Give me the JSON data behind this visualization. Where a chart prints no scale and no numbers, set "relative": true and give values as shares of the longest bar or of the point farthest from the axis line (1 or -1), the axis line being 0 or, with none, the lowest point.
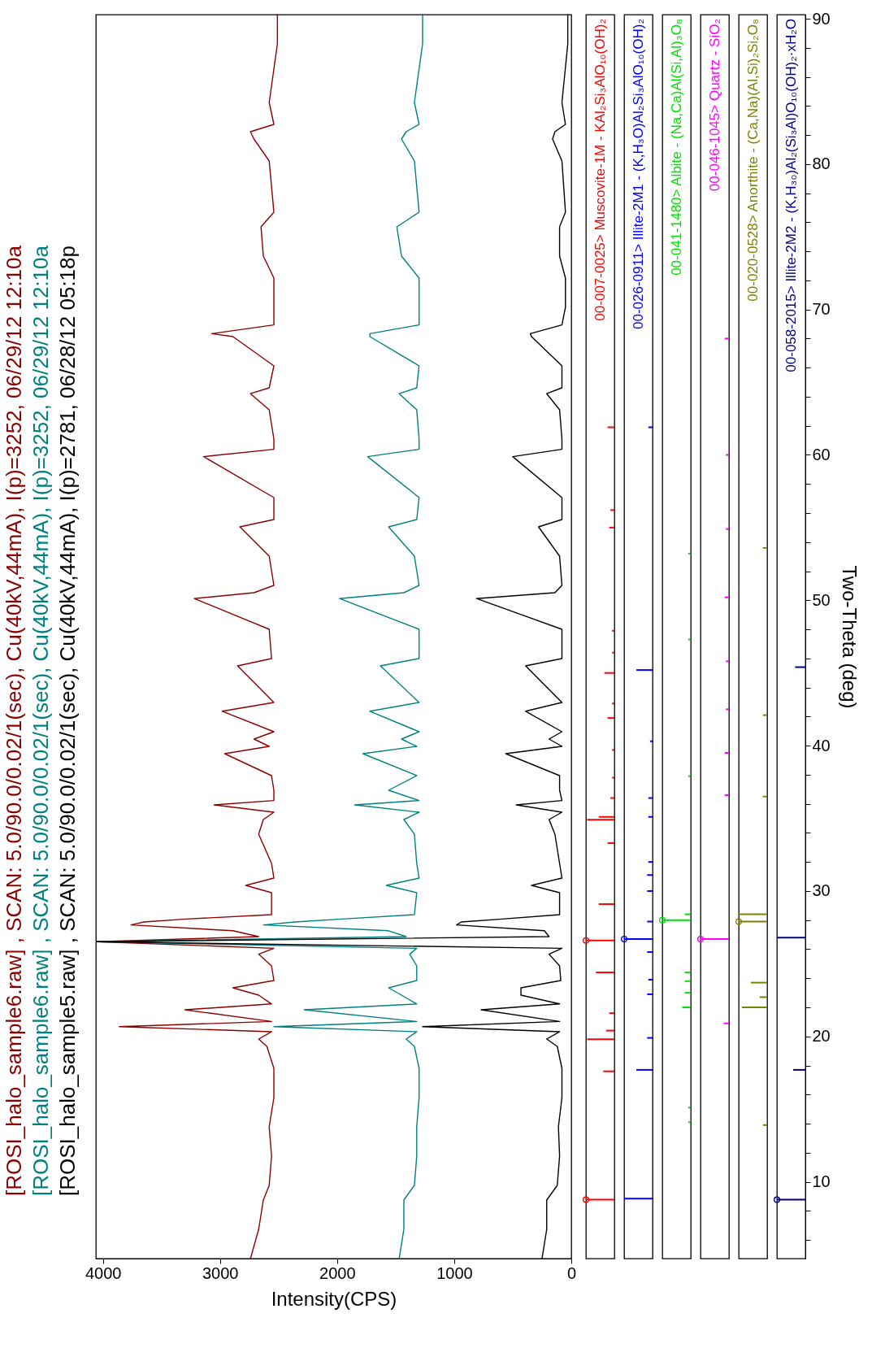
{
  "chart_data": [
    {
      "type": "line",
      "xlabel": "Intensity(CPS)",
      "xlim": [
        4060,
        0
      ],
      "xticks": [
        0,
        1000,
        2000,
        3000,
        4000
      ],
      "ylim": [
        5,
        90
      ],
      "tick_labels": "x",
      "legend": "left",
      "line_style": "solid",
      "series": [
        {
          "name": "[ROSI_halo_sample6.raw] , SCAN: 5.0/90.0/0.02/1(sec), Cu(40kV,44mA), I(p)=3252, 06/29/12 12:10a",
          "color": "#8b0000",
          "x": [
            2740,
            2670,
            2630,
            2580,
            2560,
            2580,
            2540,
            2540,
            2600,
            2670,
            2560,
            3860,
            2560,
            3300,
            2560,
            2670,
            2890,
            2540,
            2560,
            2670,
            2540,
            4050,
            2670,
            2890,
            3760,
            3650,
            3290,
            2560,
            2560,
            2780,
            2540,
            2560,
            2670,
            2630,
            2540,
            3050,
            2540,
            2540,
            2560,
            2960,
            2580,
            2710,
            2540,
            2980,
            2540,
            2850,
            2560,
            2580,
            3220,
            2710,
            2540,
            2580,
            2830,
            2540,
            2540,
            3140,
            2540,
            2540,
            2580,
            2740,
            2580,
            2540,
            2890,
            3070,
            2540,
            2540,
            2540,
            2630,
            2650,
            2540,
            2580,
            2710,
            2740,
            2540,
            2580,
            2510,
            2510
          ],
          "values": [
            5,
            7,
            9,
            10,
            12,
            14,
            16,
            18,
            19.5,
            20,
            20.5,
            20.85,
            21.2,
            22,
            22.4,
            23,
            23.5,
            24,
            25,
            25.8,
            26.2,
            26.65,
            27,
            27.4,
            27.8,
            28,
            28.2,
            28.5,
            30,
            30.5,
            31,
            32,
            34,
            35,
            35.5,
            36,
            36.3,
            37,
            38,
            39.5,
            40,
            40.5,
            41,
            42.4,
            43,
            45.5,
            46,
            48,
            50.1,
            50.5,
            51,
            53,
            55,
            55.5,
            57,
            59.8,
            60.3,
            61,
            63,
            64.1,
            64.5,
            66,
            68,
            68.2,
            68.8,
            70,
            72,
            73.5,
            75.5,
            76.5,
            80,
            81.5,
            82,
            82.5,
            84,
            88,
            90
          ]
        },
        {
          "name": "[ROSI_halo_sample6.raw] , SCAN: 5.0/90.0/0.02/1(sec), Cu(40kV,44mA), I(p)=3252, 06/29/12 12:10a",
          "color": "#008080",
          "x": [
            1470,
            1430,
            1430,
            1340,
            1320,
            1320,
            1300,
            1300,
            1340,
            1410,
            1320,
            2540,
            1320,
            2280,
            1320,
            1450,
            1560,
            1320,
            1320,
            1380,
            1320,
            4050,
            1410,
            1560,
            2630,
            2360,
            1960,
            1340,
            1320,
            1580,
            1300,
            1320,
            1340,
            1430,
            1300,
            1850,
            1300,
            1560,
            1320,
            1780,
            1320,
            1450,
            1300,
            1720,
            1300,
            1630,
            1300,
            1300,
            1980,
            1430,
            1300,
            1340,
            1560,
            1320,
            1300,
            1740,
            1300,
            1300,
            1320,
            1470,
            1320,
            1300,
            1720,
            1720,
            1300,
            1300,
            1300,
            1450,
            1490,
            1300,
            1340,
            1450,
            1410,
            1300,
            1340,
            1270,
            1270
          ],
          "values": [
            5,
            7,
            9,
            10,
            12,
            14,
            16,
            18,
            19.5,
            20,
            20.5,
            20.85,
            21.2,
            22,
            22.4,
            23,
            23.5,
            24,
            25,
            25.8,
            26.2,
            26.65,
            27,
            27.4,
            27.8,
            28,
            28.2,
            28.5,
            30,
            30.5,
            31,
            32,
            34,
            35,
            35.5,
            36,
            36.3,
            37,
            38,
            39.5,
            40,
            40.5,
            41,
            42.4,
            43,
            45.5,
            46,
            48,
            50.1,
            50.5,
            51,
            53,
            55,
            55.5,
            57,
            59.8,
            60.3,
            61,
            63,
            64.1,
            64.5,
            66,
            68,
            68.2,
            68.8,
            70,
            72,
            73.5,
            75.5,
            76.5,
            80,
            81.5,
            82,
            82.5,
            84,
            88,
            90
          ]
        },
        {
          "name": "[ROSI_halo_sample5.raw] , SCAN: 5.0/90.0/0.02/1(sec), Cu(40kV,44mA), I(p)=2781, 06/28/12 05:18p",
          "color": "#000000",
          "x": [
            250,
            210,
            210,
            120,
            100,
            110,
            80,
            80,
            120,
            210,
            100,
            1270,
            100,
            770,
            100,
            430,
            430,
            90,
            100,
            190,
            80,
            4050,
            190,
            230,
            980,
            940,
            590,
            100,
            100,
            340,
            80,
            100,
            140,
            190,
            80,
            470,
            80,
            100,
            100,
            560,
            80,
            190,
            80,
            390,
            80,
            390,
            80,
            80,
            810,
            140,
            80,
            100,
            280,
            80,
            80,
            500,
            80,
            80,
            100,
            210,
            80,
            80,
            340,
            350,
            80,
            50,
            50,
            100,
            100,
            50,
            80,
            160,
            140,
            50,
            80,
            30,
            30
          ],
          "values": [
            5,
            7,
            9,
            10,
            12,
            14,
            16,
            18,
            19.5,
            20,
            20.5,
            20.85,
            21.2,
            22,
            22.4,
            23,
            23.5,
            24,
            25,
            25.8,
            26.2,
            26.65,
            27,
            27.4,
            27.8,
            28,
            28.2,
            28.5,
            30,
            30.5,
            31,
            32,
            34,
            35,
            35.5,
            36,
            36.3,
            37,
            38,
            39.5,
            40,
            40.5,
            41,
            42.4,
            43,
            45.5,
            46,
            48,
            50.1,
            50.5,
            51,
            53,
            55,
            55.5,
            57,
            59.8,
            60.3,
            61,
            63,
            64.1,
            64.5,
            66,
            68,
            68.2,
            68.8,
            70,
            72,
            73.5,
            75.5,
            76.5,
            80,
            81.5,
            82,
            82.5,
            84,
            88,
            90
          ]
        }
      ]
    },
    {
      "type": "bar",
      "orientation": "horizontal",
      "title": "00-007-0025> Muscovite-1M - KAl₂Si₃AlO₁₀(OH)₂",
      "relative": true,
      "ylim": [
        5,
        90
      ],
      "tick_labels": false,
      "series": [
        {
          "color": "#ff0000",
          "x": [
            8.77,
            17.6,
            19.8,
            20.4,
            21.6,
            24.4,
            26.6,
            29.1,
            33.3,
            34.9,
            35.1,
            36.4,
            37.8,
            39.7,
            41.9,
            42.9,
            45,
            46.4,
            47.9,
            55,
            56.2,
            61.9
          ],
          "values": [
            1,
            0.39,
            0.96,
            0.29,
            0.18,
            0.65,
            1,
            0.55,
            0.24,
            0.96,
            0.55,
            0.14,
            0.08,
            0.08,
            0.24,
            0.08,
            0.35,
            0.08,
            0.08,
            0.18,
            0.14,
            0.24
          ]
        },
        {
          "type": "scatter",
          "marker": "circle",
          "color": "#ff0000",
          "x": [
            8.77,
            26.6
          ],
          "values": [
            1,
            1
          ]
        }
      ]
    },
    {
      "type": "bar",
      "orientation": "horizontal",
      "title": "00-026-0911> Illite-2M1 - (K,H₃O)Al₂Si₃AlO₁₀(OH)₂",
      "relative": true,
      "ylim": [
        5,
        90
      ],
      "tick_labels": false,
      "series": [
        {
          "color": "#0000ff",
          "x": [
            8.84,
            17.7,
            19.9,
            22.9,
            23.9,
            25.8,
            26.7,
            27.9,
            30,
            31.1,
            32,
            35.1,
            36.4,
            40.3,
            45.2,
            61.9
          ],
          "values": [
            1,
            0.57,
            0.19,
            0.19,
            0.15,
            0.19,
            1,
            0.19,
            0.19,
            0.19,
            0.15,
            0.15,
            0.15,
            0.09,
            0.57,
            0.15
          ]
        },
        {
          "type": "scatter",
          "marker": "circle",
          "color": "#0000ff",
          "x": [
            26.7
          ],
          "values": [
            1
          ]
        }
      ]
    },
    {
      "type": "bar",
      "orientation": "horizontal",
      "title": "00-041-1480> Albite - (Na,Ca)Al(Si,Al)₃O₈",
      "relative": true,
      "ylim": [
        5,
        90
      ],
      "tick_labels": false,
      "series": [
        {
          "color": "#00e000",
          "x": [
            14.1,
            15.1,
            22,
            23,
            23.8,
            24.4,
            27.9,
            28,
            28.4,
            37.9,
            47.3,
            53.2
          ],
          "values": [
            0.09,
            0.09,
            0.3,
            0.21,
            0.21,
            0.21,
            null,
            1,
            0.21,
            0.09,
            0.09,
            0.09
          ]
        },
        {
          "type": "scatter",
          "marker": "circle",
          "color": "#00e000",
          "x": [
            28
          ],
          "values": [
            1
          ]
        }
      ]
    },
    {
      "type": "bar",
      "orientation": "horizontal",
      "title": "00-046-1045> Quartz - SiO₂",
      "relative": true,
      "ylim": [
        5,
        90
      ],
      "tick_labels": false,
      "series": [
        {
          "color": "#ff00ff",
          "x": [
            20.9,
            26.7,
            36.6,
            39.5,
            42.5,
            45.8,
            50.2,
            54.9,
            60,
            68
          ],
          "values": [
            0.19,
            1,
            0.15,
            0.15,
            0.11,
            0.11,
            0.15,
            0.11,
            0.11,
            0.15
          ]
        },
        {
          "type": "scatter",
          "marker": "circle",
          "color": "#ff00ff",
          "x": [
            26.7
          ],
          "values": [
            1
          ]
        }
      ]
    },
    {
      "type": "bar",
      "orientation": "horizontal",
      "title": "00-020-0528> Anorthite - (Ca,Na)(Al,Si)₂Si₂O₈",
      "relative": true,
      "ylim": [
        5,
        90
      ],
      "tick_labels": false,
      "series": [
        {
          "color": "#808000",
          "x": [
            13.9,
            22,
            22.7,
            23.7,
            27.9,
            28.4,
            36.5,
            42.1,
            53.6
          ],
          "values": [
            0.15,
            0.89,
            0.26,
            0.57,
            1,
            1,
            0.15,
            0.15,
            0.15
          ]
        },
        {
          "type": "scatter",
          "marker": "circle",
          "color": "#808000",
          "x": [
            27.9
          ],
          "values": [
            1
          ]
        }
      ]
    },
    {
      "type": "bar",
      "orientation": "horizontal",
      "title": "00-058-2015> Illite-2M2 - (K,H₃₀)Al₂(Si₃Al)O₁₀(OH)₂·xH₂O",
      "relative": true,
      "ylim": [
        5,
        90
      ],
      "ylabel": "Two-Theta (deg)",
      "tick_labels": "y",
      "yticks": [
        {
          "value": 6,
          "label": null
        },
        {
          "value": 8,
          "label": null
        },
        10,
        {
          "value": 12,
          "label": null
        },
        {
          "value": 14,
          "label": null
        },
        {
          "value": 16,
          "label": null
        },
        {
          "value": 18,
          "label": null
        },
        20,
        {
          "value": 22,
          "label": null
        },
        {
          "value": 24,
          "label": null
        },
        {
          "value": 26,
          "label": null
        },
        {
          "value": 28,
          "label": null
        },
        30,
        {
          "value": 32,
          "label": null
        },
        {
          "value": 34,
          "label": null
        },
        {
          "value": 36,
          "label": null
        },
        {
          "value": 38,
          "label": null
        },
        40,
        {
          "value": 42,
          "label": null
        },
        {
          "value": 44,
          "label": null
        },
        {
          "value": 46,
          "label": null
        },
        {
          "value": 48,
          "label": null
        },
        50,
        {
          "value": 52,
          "label": null
        },
        {
          "value": 54,
          "label": null
        },
        {
          "value": 56,
          "label": null
        },
        {
          "value": 58,
          "label": null
        },
        60,
        {
          "value": 62,
          "label": null
        },
        {
          "value": 64,
          "label": null
        },
        {
          "value": 66,
          "label": null
        },
        {
          "value": 68,
          "label": null
        },
        70,
        {
          "value": 72,
          "label": null
        },
        {
          "value": 74,
          "label": null
        },
        {
          "value": 76,
          "label": null
        },
        {
          "value": 78,
          "label": null
        },
        80,
        {
          "value": 82,
          "label": null
        },
        {
          "value": 84,
          "label": null
        },
        {
          "value": 86,
          "label": null
        },
        {
          "value": 88,
          "label": null
        },
        90
      ],
      "series": [
        {
          "color": "#000080",
          "x": [
            8.77,
            17.7,
            26.8,
            45.4
          ],
          "values": [
            1,
            0.43,
            1,
            0.36
          ]
        },
        {
          "type": "scatter",
          "marker": "circle",
          "color": "#000080",
          "x": [
            8.77
          ],
          "values": [
            1
          ]
        }
      ]
    }
  ]
}
